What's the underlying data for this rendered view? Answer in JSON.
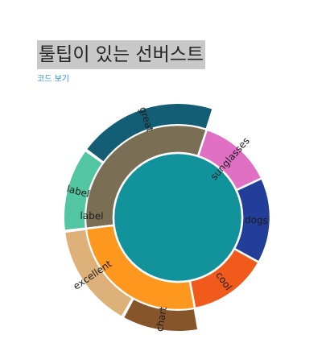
{
  "page": {
    "title": "툴팁이 있는 선버스트",
    "code_link": "코드 보기"
  },
  "chart_data": {
    "type": "sunburst",
    "title": "툴팁이 있는 선버스트",
    "nodes": [
      {
        "label": "label",
        "value": 32,
        "color": "#7a6f55",
        "children": [
          {
            "label": "label",
            "value": 12,
            "color": "#52c5a1"
          },
          {
            "label": "great",
            "value": 20,
            "color": "#135e75"
          }
        ]
      },
      {
        "label": "",
        "value": 13,
        "color": "#df70c4",
        "children": [
          {
            "label": "sunglasses",
            "value": 13,
            "color": "#df70c4"
          }
        ]
      },
      {
        "label": "",
        "value": 15,
        "color": "#233e98",
        "children": [
          {
            "label": "dogs",
            "value": 15,
            "color": "#233e98"
          }
        ]
      },
      {
        "label": "",
        "value": 14,
        "color": "#f05a1b",
        "children": [
          {
            "label": "cool",
            "value": 14,
            "color": "#f05a1b"
          }
        ]
      },
      {
        "label": "",
        "value": 26,
        "color": "#fd971e",
        "children": [
          {
            "label": "chart",
            "value": 11,
            "color": "#87552a"
          },
          {
            "label": "excellent",
            "value": 15,
            "color": "#deb17a"
          }
        ]
      }
    ],
    "center_color": "#12929a"
  }
}
